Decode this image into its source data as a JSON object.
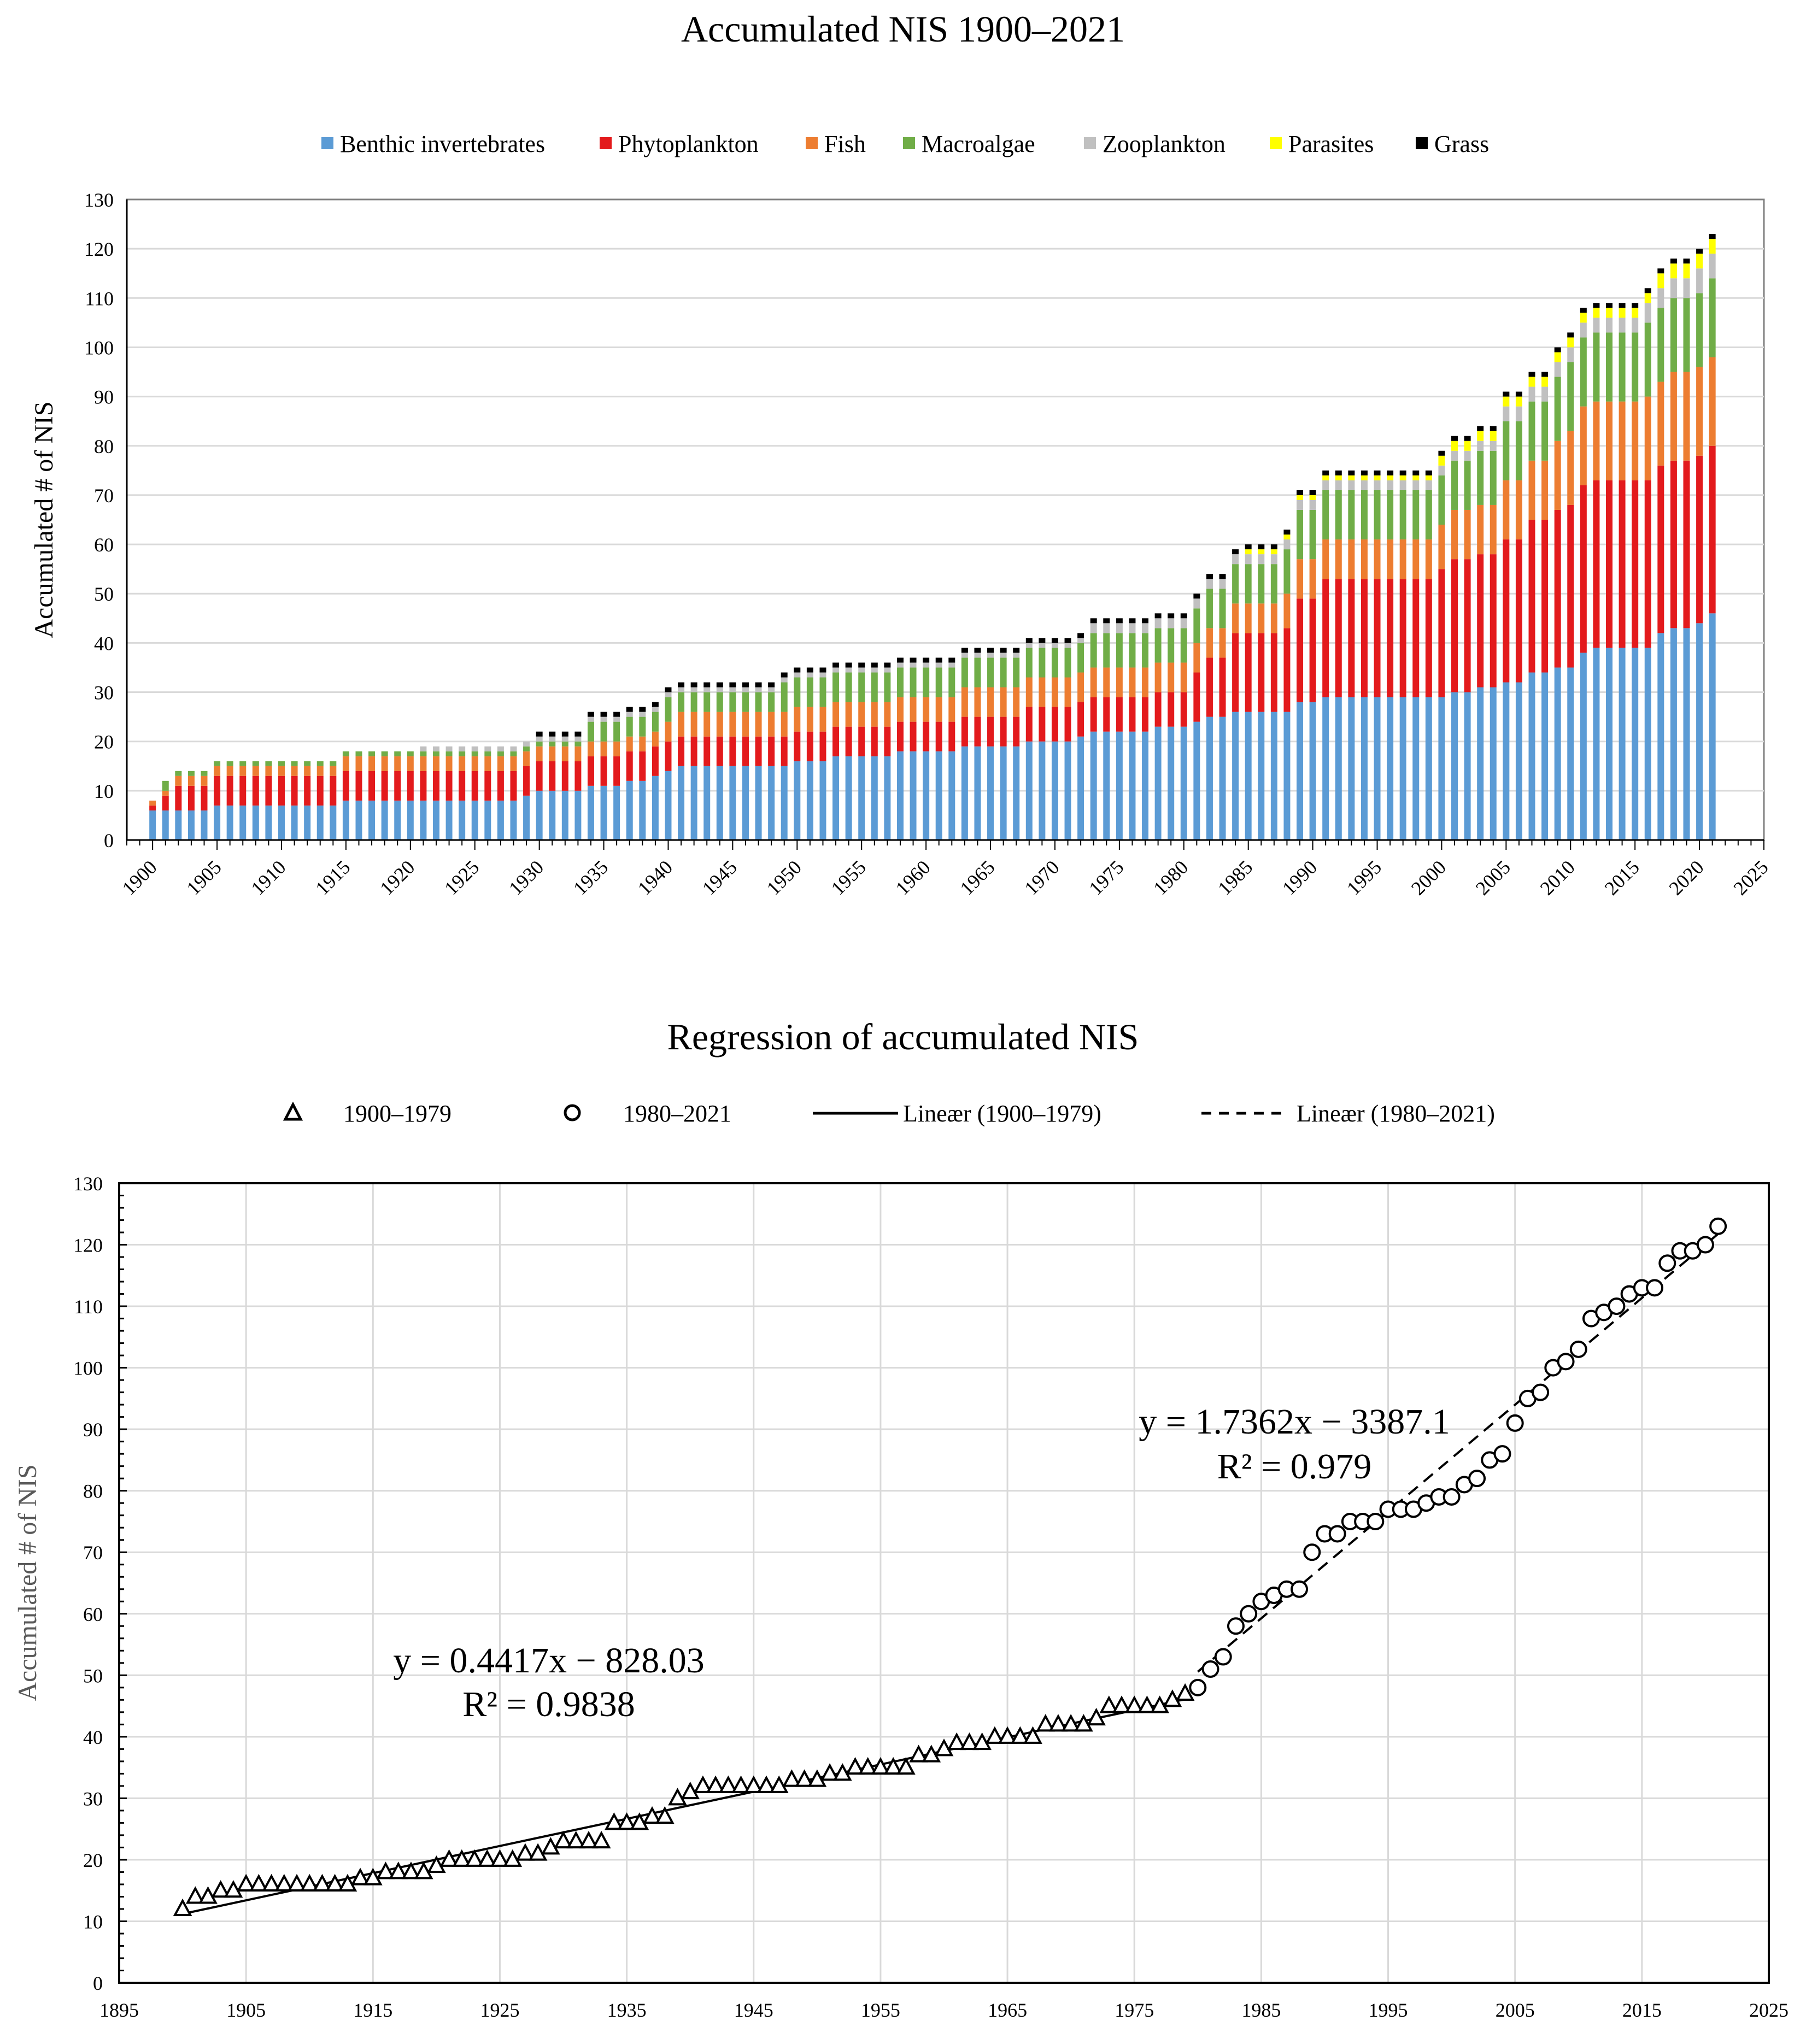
{
  "chart_data": [
    {
      "type": "bar",
      "stacked": true,
      "title": "Accumulated  NIS 1900–2021",
      "xlabel": "",
      "ylabel": "Accumulated # of NIS",
      "ylim": [
        0,
        130
      ],
      "yticks": [
        "0",
        "10",
        "20",
        "30",
        "40",
        "50",
        "60",
        "70",
        "80",
        "90",
        "100",
        "110",
        "120",
        "130"
      ],
      "xlim": [
        1898,
        2025
      ],
      "xticks": [
        "1900",
        "1905",
        "1910",
        "1915",
        "1920",
        "1925",
        "1930",
        "1935",
        "1940",
        "1945",
        "1950",
        "1955",
        "1960",
        "1965",
        "1970",
        "1975",
        "1980",
        "1985",
        "1990",
        "1995",
        "2000",
        "2005",
        "2010",
        "2015",
        "2020",
        "2025"
      ],
      "legend_position": "top",
      "grid": "horizontal",
      "colors": [
        "#5b9bd5",
        "#e31a1c",
        "#ed7d31",
        "#70ad47",
        "#c0c0c0",
        "#ffff00",
        "#000000"
      ],
      "year_start": 1900,
      "year_end": 2021,
      "series": [
        {
          "name": "Benthic invertebrates",
          "knots": [
            [
              1900,
              6
            ],
            [
              1904,
              6
            ],
            [
              1905,
              7
            ],
            [
              1914,
              7
            ],
            [
              1915,
              8
            ],
            [
              1929,
              9
            ],
            [
              1930,
              10
            ],
            [
              1934,
              11
            ],
            [
              1936,
              11
            ],
            [
              1937,
              12
            ],
            [
              1939,
              13
            ],
            [
              1940,
              14
            ],
            [
              1941,
              15
            ],
            [
              1949,
              15
            ],
            [
              1950,
              16
            ],
            [
              1953,
              17
            ],
            [
              1958,
              18
            ],
            [
              1963,
              19
            ],
            [
              1968,
              20
            ],
            [
              1972,
              21
            ],
            [
              1973,
              22
            ],
            [
              1978,
              23
            ],
            [
              1981,
              24
            ],
            [
              1982,
              25
            ],
            [
              1984,
              26
            ],
            [
              1988,
              26
            ],
            [
              1989,
              28
            ],
            [
              1991,
              29
            ],
            [
              2000,
              29
            ],
            [
              2001,
              30
            ],
            [
              2003,
              31
            ],
            [
              2005,
              32
            ],
            [
              2007,
              34
            ],
            [
              2009,
              35
            ],
            [
              2010,
              35
            ],
            [
              2011,
              38
            ],
            [
              2012,
              39
            ],
            [
              2016,
              39
            ],
            [
              2017,
              42
            ],
            [
              2018,
              43
            ],
            [
              2019,
              43
            ],
            [
              2020,
              44
            ],
            [
              2021,
              46
            ]
          ]
        },
        {
          "name": "Phytoplankton",
          "knots": [
            [
              1900,
              1
            ],
            [
              1901,
              3
            ],
            [
              1902,
              5
            ],
            [
              1905,
              6
            ],
            [
              1914,
              6
            ],
            [
              1915,
              6
            ],
            [
              1940,
              6
            ],
            [
              1941,
              6
            ],
            [
              1949,
              6
            ],
            [
              1952,
              6
            ],
            [
              1958,
              6
            ],
            [
              1963,
              6
            ],
            [
              1968,
              7
            ],
            [
              1972,
              7
            ],
            [
              1973,
              7
            ],
            [
              1978,
              7
            ],
            [
              1981,
              10
            ],
            [
              1982,
              12
            ],
            [
              1984,
              16
            ],
            [
              1988,
              17
            ],
            [
              1989,
              21
            ],
            [
              1991,
              24
            ],
            [
              2000,
              26
            ],
            [
              2001,
              27
            ],
            [
              2003,
              27
            ],
            [
              2005,
              29
            ],
            [
              2007,
              31
            ],
            [
              2009,
              32
            ],
            [
              2010,
              33
            ],
            [
              2011,
              34
            ],
            [
              2012,
              34
            ],
            [
              2016,
              34
            ],
            [
              2017,
              34
            ],
            [
              2018,
              34
            ],
            [
              2019,
              34
            ],
            [
              2020,
              34
            ],
            [
              2021,
              34
            ]
          ]
        },
        {
          "name": "Fish",
          "knots": [
            [
              1900,
              1
            ],
            [
              1901,
              1
            ],
            [
              1902,
              2
            ],
            [
              1905,
              2
            ],
            [
              1914,
              2
            ],
            [
              1915,
              3
            ],
            [
              1930,
              3
            ],
            [
              1940,
              4
            ],
            [
              1941,
              5
            ],
            [
              1949,
              5
            ],
            [
              1952,
              5
            ],
            [
              1958,
              5
            ],
            [
              1963,
              6
            ],
            [
              1968,
              6
            ],
            [
              1972,
              6
            ],
            [
              1973,
              6
            ],
            [
              1978,
              6
            ],
            [
              1981,
              6
            ],
            [
              1982,
              6
            ],
            [
              1984,
              6
            ],
            [
              1988,
              7
            ],
            [
              1989,
              8
            ],
            [
              1991,
              8
            ],
            [
              2000,
              9
            ],
            [
              2001,
              10
            ],
            [
              2003,
              10
            ],
            [
              2005,
              12
            ],
            [
              2007,
              12
            ],
            [
              2009,
              14
            ],
            [
              2010,
              15
            ],
            [
              2011,
              16
            ],
            [
              2012,
              16
            ],
            [
              2016,
              17
            ],
            [
              2017,
              17
            ],
            [
              2018,
              18
            ],
            [
              2019,
              18
            ],
            [
              2020,
              18
            ],
            [
              2021,
              18
            ]
          ]
        },
        {
          "name": "Macroalgae",
          "knots": [
            [
              1900,
              0
            ],
            [
              1901,
              2
            ],
            [
              1902,
              1
            ],
            [
              1905,
              1
            ],
            [
              1914,
              1
            ],
            [
              1915,
              1
            ],
            [
              1930,
              1
            ],
            [
              1934,
              4
            ],
            [
              1940,
              5
            ],
            [
              1941,
              4
            ],
            [
              1949,
              6
            ],
            [
              1952,
              6
            ],
            [
              1958,
              6
            ],
            [
              1963,
              6
            ],
            [
              1968,
              6
            ],
            [
              1972,
              6
            ],
            [
              1973,
              7
            ],
            [
              1978,
              7
            ],
            [
              1981,
              7
            ],
            [
              1982,
              8
            ],
            [
              1984,
              8
            ],
            [
              1988,
              9
            ],
            [
              1989,
              10
            ],
            [
              1991,
              10
            ],
            [
              2000,
              10
            ],
            [
              2001,
              10
            ],
            [
              2003,
              11
            ],
            [
              2005,
              12
            ],
            [
              2007,
              12
            ],
            [
              2009,
              13
            ],
            [
              2010,
              14
            ],
            [
              2011,
              14
            ],
            [
              2012,
              14
            ],
            [
              2016,
              15
            ],
            [
              2017,
              15
            ],
            [
              2018,
              15
            ],
            [
              2019,
              15
            ],
            [
              2020,
              15
            ],
            [
              2021,
              16
            ]
          ]
        },
        {
          "name": "Zooplankton",
          "knots": [
            [
              1900,
              0
            ],
            [
              1920,
              0
            ],
            [
              1921,
              1
            ],
            [
              1940,
              1
            ],
            [
              1941,
              1
            ],
            [
              1949,
              1
            ],
            [
              1952,
              1
            ],
            [
              1958,
              1
            ],
            [
              1963,
              1
            ],
            [
              1968,
              1
            ],
            [
              1972,
              1
            ],
            [
              1973,
              2
            ],
            [
              1978,
              2
            ],
            [
              1981,
              2
            ],
            [
              1982,
              2
            ],
            [
              1984,
              2
            ],
            [
              1988,
              2
            ],
            [
              1989,
              2
            ],
            [
              1991,
              2
            ],
            [
              2000,
              2
            ],
            [
              2001,
              2
            ],
            [
              2003,
              2
            ],
            [
              2005,
              3
            ],
            [
              2007,
              3
            ],
            [
              2009,
              3
            ],
            [
              2010,
              3
            ],
            [
              2011,
              3
            ],
            [
              2012,
              3
            ],
            [
              2016,
              4
            ],
            [
              2017,
              4
            ],
            [
              2018,
              4
            ],
            [
              2019,
              4
            ],
            [
              2020,
              5
            ],
            [
              2021,
              5
            ]
          ]
        },
        {
          "name": "Parasites",
          "knots": [
            [
              1900,
              0
            ],
            [
              1984,
              0
            ],
            [
              1985,
              1
            ],
            [
              1988,
              1
            ],
            [
              1989,
              1
            ],
            [
              1991,
              1
            ],
            [
              2000,
              2
            ],
            [
              2001,
              2
            ],
            [
              2003,
              2
            ],
            [
              2005,
              2
            ],
            [
              2007,
              2
            ],
            [
              2009,
              2
            ],
            [
              2010,
              2
            ],
            [
              2011,
              2
            ],
            [
              2012,
              2
            ],
            [
              2016,
              2
            ],
            [
              2017,
              3
            ],
            [
              2018,
              3
            ],
            [
              2019,
              3
            ],
            [
              2020,
              3
            ],
            [
              2021,
              3
            ]
          ]
        },
        {
          "name": "Grass",
          "knots": [
            [
              1900,
              0
            ],
            [
              1929,
              0
            ],
            [
              1930,
              1
            ],
            [
              2021,
              1
            ]
          ]
        }
      ]
    },
    {
      "type": "scatter",
      "title": "Regression  of accumulated  NIS",
      "xlabel": "",
      "ylabel": "Accumulated # of NIS",
      "xlim": [
        1895,
        2025
      ],
      "ylim": [
        0,
        130
      ],
      "xticks": [
        "1895",
        "1905",
        "1915",
        "1925",
        "1935",
        "1945",
        "1955",
        "1965",
        "1975",
        "1985",
        "1995",
        "2005",
        "2015",
        "2025"
      ],
      "yticks": [
        "0",
        "10",
        "20",
        "30",
        "40",
        "50",
        "60",
        "70",
        "80",
        "90",
        "100",
        "110",
        "120",
        "130"
      ],
      "legend_position": "top",
      "grid": "both",
      "series": [
        {
          "name": "1900–1979",
          "marker": "triangle",
          "x_start": 1900,
          "values": [
            12,
            14,
            14,
            15,
            15,
            16,
            16,
            16,
            16,
            16,
            16,
            16,
            16,
            16,
            17,
            17,
            18,
            18,
            18,
            18,
            19,
            20,
            20,
            20,
            20,
            20,
            20,
            21,
            21,
            22,
            23,
            23,
            23,
            23,
            26,
            26,
            26,
            27,
            27,
            30,
            31,
            32,
            32,
            32,
            32,
            32,
            32,
            32,
            33,
            33,
            33,
            34,
            34,
            35,
            35,
            35,
            35,
            35,
            37,
            37,
            38,
            39,
            39,
            39,
            40,
            40,
            40,
            40,
            42,
            42,
            42,
            42,
            43,
            45,
            45,
            45,
            45,
            45,
            46,
            47
          ]
        },
        {
          "name": "1980–2021",
          "marker": "circle",
          "x_start": 1980,
          "values": [
            48,
            51,
            53,
            58,
            60,
            62,
            63,
            64,
            64,
            70,
            73,
            73,
            75,
            75,
            75,
            77,
            77,
            77,
            78,
            79,
            79,
            81,
            82,
            85,
            86,
            91,
            95,
            96,
            100,
            101,
            103,
            108,
            109,
            110,
            112,
            113,
            113,
            117,
            119,
            119,
            120,
            123
          ]
        }
      ],
      "fits": [
        {
          "name": "Lineær (1900–1979)",
          "slope": 0.4417,
          "intercept": -828.03,
          "x_range": [
            1900,
            1979
          ],
          "style": "solid",
          "equation": "y = 0.4417x − 828.03",
          "r2": "R² = 0.9838"
        },
        {
          "name": "Lineær (1980–2021)",
          "slope": 1.7362,
          "intercept": -3387.1,
          "x_range": [
            1980,
            2021
          ],
          "style": "dashed",
          "equation": "y = 1.7362x − 3387.1",
          "r2": "R² = 0.979"
        }
      ]
    }
  ]
}
